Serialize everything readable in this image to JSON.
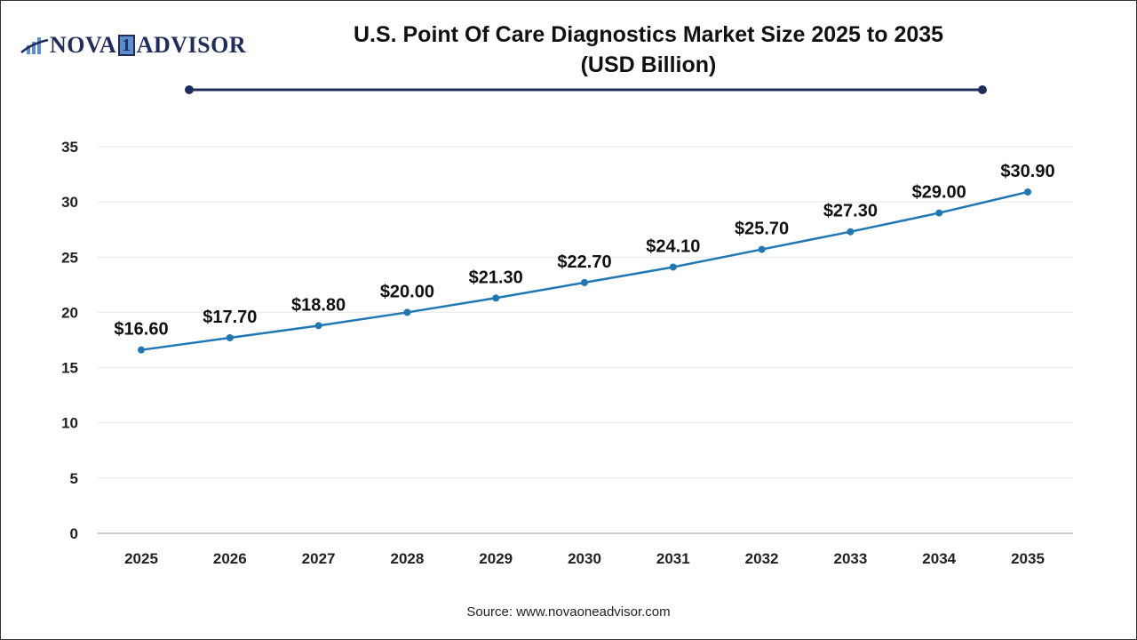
{
  "logo": {
    "text_left": "NOVA",
    "text_mid": "1",
    "text_right": "ADVISOR"
  },
  "title_line1": "U.S. Point Of Care Diagnostics Market Size 2025 to 2035",
  "title_line2": "(USD Billion)",
  "source": "Source: www.novaoneadvisor.com",
  "colors": {
    "line": "#1f77b4",
    "title_rule": "#1f2d5c",
    "grid": "#e8e8e8"
  },
  "chart_data": {
    "type": "line",
    "title": "U.S. Point Of Care Diagnostics Market Size 2025 to 2035 (USD Billion)",
    "categories": [
      "2025",
      "2026",
      "2027",
      "2028",
      "2029",
      "2030",
      "2031",
      "2032",
      "2033",
      "2034",
      "2035"
    ],
    "values": [
      16.6,
      17.7,
      18.8,
      20.0,
      21.3,
      22.7,
      24.1,
      25.7,
      27.3,
      29.0,
      30.9
    ],
    "data_labels": [
      "$16.60",
      "$17.70",
      "$18.80",
      "$20.00",
      "$21.30",
      "$22.70",
      "$24.10",
      "$25.70",
      "$27.30",
      "$29.00",
      "$30.90"
    ],
    "yticks": [
      "0",
      "5",
      "10",
      "15",
      "20",
      "25",
      "30",
      "35"
    ],
    "ylim": [
      0,
      35
    ],
    "grid": true,
    "xlabel": "",
    "ylabel": ""
  }
}
